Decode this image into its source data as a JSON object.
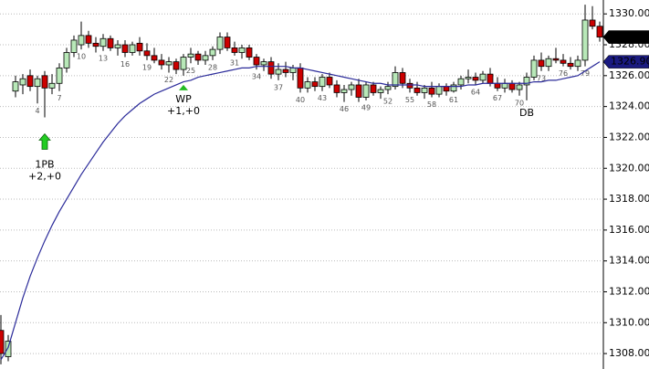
{
  "chart_data": {
    "type": "candlestick",
    "categories": [
      null,
      null,
      null,
      null,
      null,
      "4",
      null,
      null,
      "7",
      null,
      null,
      "10",
      null,
      null,
      "13",
      null,
      null,
      "16",
      null,
      null,
      "19",
      null,
      null,
      "22",
      null,
      null,
      "25",
      null,
      null,
      "28",
      null,
      null,
      "31",
      null,
      null,
      "34",
      null,
      null,
      "37",
      null,
      null,
      "40",
      null,
      null,
      "43",
      null,
      null,
      "46",
      null,
      null,
      "49",
      null,
      null,
      "52",
      null,
      null,
      "55",
      null,
      null,
      "58",
      null,
      null,
      "61",
      null,
      null,
      "64",
      null,
      null,
      "67",
      null,
      null,
      "70",
      null,
      null,
      "73",
      null,
      null,
      "76",
      null,
      null,
      "79",
      null,
      null
    ],
    "open": [
      1309.5,
      1307.8,
      1325.0,
      1325.4,
      1326.0,
      1325.3,
      1326.0,
      1325.2,
      1325.5,
      1326.5,
      1327.5,
      1328.0,
      1328.6,
      1328.1,
      1327.9,
      1328.4,
      1327.8,
      1328.0,
      1327.5,
      1328.1,
      1327.6,
      1327.3,
      1327.0,
      1326.7,
      1326.9,
      1326.4,
      1327.2,
      1327.4,
      1327.0,
      1327.3,
      1327.7,
      1328.5,
      1327.8,
      1327.5,
      1327.8,
      1327.2,
      1326.7,
      1326.9,
      1326.1,
      1326.4,
      1326.2,
      1326.5,
      1325.2,
      1325.6,
      1325.3,
      1325.9,
      1325.4,
      1324.9,
      1325.1,
      1325.4,
      1324.6,
      1325.4,
      1324.9,
      1325.1,
      1325.3,
      1326.2,
      1325.5,
      1325.2,
      1324.9,
      1325.2,
      1324.8,
      1325.3,
      1325.0,
      1325.4,
      1325.8,
      1325.9,
      1325.7,
      1326.1,
      1325.5,
      1325.2,
      1325.5,
      1325.1,
      1325.4,
      1325.9,
      1327.0,
      1326.6,
      1327.1,
      1327.0,
      1326.8,
      1326.6,
      1327.0,
      1329.6,
      1329.2
    ],
    "high": [
      1310.5,
      1309.2,
      1326.0,
      1326.1,
      1326.4,
      1326.0,
      1326.3,
      1326.1,
      1326.8,
      1327.8,
      1328.6,
      1329.5,
      1328.9,
      1328.5,
      1328.7,
      1328.6,
      1328.3,
      1328.3,
      1328.2,
      1328.5,
      1328.1,
      1327.8,
      1327.4,
      1327.2,
      1327.1,
      1327.4,
      1327.8,
      1327.6,
      1327.6,
      1327.9,
      1328.8,
      1328.8,
      1328.2,
      1328.0,
      1328.0,
      1327.4,
      1327.1,
      1327.2,
      1326.8,
      1326.9,
      1326.7,
      1326.8,
      1325.9,
      1325.9,
      1326.1,
      1326.2,
      1325.7,
      1325.4,
      1325.6,
      1325.8,
      1325.6,
      1325.6,
      1325.3,
      1325.6,
      1326.6,
      1326.5,
      1325.8,
      1325.6,
      1325.4,
      1325.6,
      1325.5,
      1325.5,
      1325.6,
      1326.0,
      1326.4,
      1326.2,
      1326.3,
      1326.5,
      1325.9,
      1325.8,
      1325.7,
      1325.6,
      1326.2,
      1327.3,
      1327.5,
      1327.3,
      1327.8,
      1327.4,
      1327.2,
      1327.3,
      1330.6,
      1330.5,
      1329.5
    ],
    "low": [
      1307.3,
      1307.5,
      1324.6,
      1324.8,
      1325.0,
      1324.2,
      1323.3,
      1324.8,
      1325.0,
      1326.2,
      1327.2,
      1327.7,
      1327.8,
      1327.5,
      1327.6,
      1327.6,
      1327.3,
      1327.2,
      1327.3,
      1327.3,
      1327.0,
      1326.8,
      1326.4,
      1326.2,
      1326.1,
      1326.0,
      1326.8,
      1326.7,
      1326.7,
      1327.0,
      1327.4,
      1327.6,
      1327.3,
      1327.1,
      1327.0,
      1326.4,
      1326.3,
      1325.8,
      1325.7,
      1325.9,
      1325.7,
      1324.9,
      1324.9,
      1325.0,
      1325.0,
      1325.2,
      1324.6,
      1324.3,
      1324.7,
      1324.3,
      1324.4,
      1324.7,
      1324.5,
      1324.8,
      1325.1,
      1325.2,
      1324.9,
      1324.7,
      1324.5,
      1324.6,
      1324.6,
      1324.7,
      1324.9,
      1325.1,
      1325.5,
      1325.4,
      1325.5,
      1325.3,
      1325.0,
      1324.9,
      1324.9,
      1324.7,
      1324.4,
      1325.7,
      1326.3,
      1326.3,
      1326.8,
      1326.6,
      1326.4,
      1326.3,
      1326.6,
      1329.0,
      1328.2
    ],
    "close": [
      1308.0,
      1308.8,
      1325.6,
      1325.8,
      1325.3,
      1325.8,
      1325.2,
      1325.5,
      1326.5,
      1327.5,
      1328.3,
      1328.6,
      1328.1,
      1327.9,
      1328.4,
      1327.8,
      1328.0,
      1327.5,
      1328.0,
      1327.6,
      1327.3,
      1327.0,
      1326.7,
      1326.9,
      1326.4,
      1327.2,
      1327.4,
      1327.0,
      1327.3,
      1327.7,
      1328.5,
      1327.8,
      1327.5,
      1327.8,
      1327.2,
      1326.7,
      1326.9,
      1326.1,
      1326.4,
      1326.2,
      1326.5,
      1325.2,
      1325.6,
      1325.3,
      1325.9,
      1325.4,
      1324.9,
      1325.1,
      1325.4,
      1324.6,
      1325.4,
      1324.9,
      1325.1,
      1325.3,
      1326.2,
      1325.5,
      1325.2,
      1324.9,
      1325.2,
      1324.8,
      1325.3,
      1325.0,
      1325.4,
      1325.8,
      1325.9,
      1325.7,
      1326.1,
      1325.5,
      1325.2,
      1325.5,
      1325.1,
      1325.4,
      1325.9,
      1327.0,
      1326.6,
      1327.1,
      1327.0,
      1326.8,
      1326.6,
      1327.0,
      1329.6,
      1329.2,
      1328.5
    ],
    "up_color": "#b8e8b8",
    "down_color": "#cc0000",
    "ma": {
      "color": "#2b2b9a",
      "values": [
        1307.6,
        1308.4,
        1310.0,
        1311.6,
        1313.0,
        1314.2,
        1315.3,
        1316.3,
        1317.2,
        1318.0,
        1318.8,
        1319.6,
        1320.3,
        1321.0,
        1321.7,
        1322.3,
        1322.9,
        1323.4,
        1323.8,
        1324.2,
        1324.5,
        1324.8,
        1325.0,
        1325.2,
        1325.4,
        1325.6,
        1325.7,
        1325.9,
        1326.0,
        1326.1,
        1326.2,
        1326.3,
        1326.4,
        1326.5,
        1326.5,
        1326.6,
        1326.6,
        1326.6,
        1326.6,
        1326.6,
        1326.5,
        1326.5,
        1326.4,
        1326.3,
        1326.2,
        1326.1,
        1326.0,
        1325.9,
        1325.8,
        1325.7,
        1325.6,
        1325.5,
        1325.5,
        1325.4,
        1325.4,
        1325.4,
        1325.4,
        1325.4,
        1325.3,
        1325.3,
        1325.3,
        1325.3,
        1325.3,
        1325.3,
        1325.4,
        1325.4,
        1325.5,
        1325.5,
        1325.5,
        1325.5,
        1325.5,
        1325.5,
        1325.5,
        1325.6,
        1325.6,
        1325.7,
        1325.7,
        1325.8,
        1325.9,
        1326.0,
        1326.3,
        1326.6,
        1326.9
      ],
      "last_label": {
        "value": 1326.9,
        "label": "1326.90"
      }
    },
    "last_price": {
      "value": 1328.5,
      "label": "1328.50"
    },
    "annotations": [
      {
        "text": "1PB",
        "detail": "+2,+0",
        "index": 6,
        "marker": "arrow"
      },
      {
        "text": "WP",
        "detail": "+1,+0",
        "index": 25,
        "marker": "triangle"
      },
      {
        "text": "DB",
        "index": 72
      }
    ],
    "ylim": [
      1307.0,
      1330.9
    ],
    "yticks": [
      {
        "value": 1308,
        "label": "1308.00"
      },
      {
        "value": 1310,
        "label": "1310.00"
      },
      {
        "value": 1312,
        "label": "1312.00"
      },
      {
        "value": 1314,
        "label": "1314.00"
      },
      {
        "value": 1316,
        "label": "1316.00"
      },
      {
        "value": 1318,
        "label": "1318.00"
      },
      {
        "value": 1320,
        "label": "1320.00"
      },
      {
        "value": 1322,
        "label": "1322.00"
      },
      {
        "value": 1324,
        "label": "1324.00"
      },
      {
        "value": 1326,
        "label": "1326.00"
      },
      {
        "value": 1328,
        "label": "1328.00"
      },
      {
        "value": 1330,
        "label": "1330.00"
      }
    ],
    "grid": true
  }
}
